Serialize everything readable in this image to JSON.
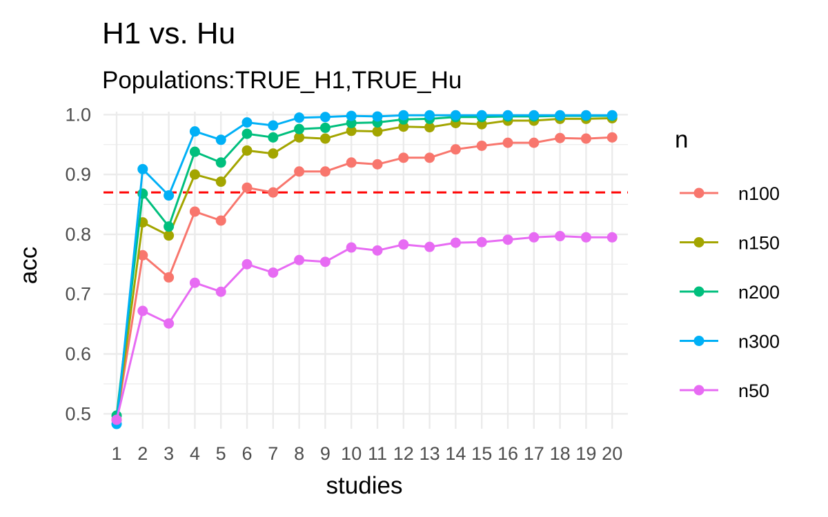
{
  "chart_data": {
    "type": "line",
    "title": "H1 vs. Hu",
    "subtitle": "Populations:TRUE_H1,TRUE_Hu",
    "xlabel": "studies",
    "ylabel": "acc",
    "x": [
      1,
      2,
      3,
      4,
      5,
      6,
      7,
      8,
      9,
      10,
      11,
      12,
      13,
      14,
      15,
      16,
      17,
      18,
      19,
      20
    ],
    "ylim": [
      0.475,
      1.005
    ],
    "yticks": [
      0.5,
      0.6,
      0.7,
      0.8,
      0.9,
      1.0
    ],
    "ytick_labels": [
      "0.5",
      "0.6",
      "0.7",
      "0.8",
      "0.9",
      "1.0"
    ],
    "grid": true,
    "reference_line": {
      "y": 0.87,
      "color": "#ff0000",
      "style": "dashed"
    },
    "legend": {
      "title": "n",
      "placement": "right"
    },
    "series": [
      {
        "name": "n100",
        "color": "#F8766D",
        "values": [
          0.49,
          0.765,
          0.728,
          0.838,
          0.823,
          0.878,
          0.87,
          0.905,
          0.905,
          0.92,
          0.917,
          0.928,
          0.928,
          0.942,
          0.948,
          0.953,
          0.953,
          0.961,
          0.96,
          0.962
        ]
      },
      {
        "name": "n150",
        "color": "#A3A500",
        "values": [
          0.49,
          0.82,
          0.798,
          0.9,
          0.888,
          0.94,
          0.935,
          0.962,
          0.96,
          0.973,
          0.972,
          0.98,
          0.979,
          0.986,
          0.984,
          0.99,
          0.99,
          0.993,
          0.993,
          0.994
        ]
      },
      {
        "name": "n200",
        "color": "#00BF7D",
        "values": [
          0.497,
          0.868,
          0.813,
          0.938,
          0.92,
          0.968,
          0.962,
          0.976,
          0.978,
          0.986,
          0.987,
          0.992,
          0.993,
          0.996,
          0.996,
          0.997,
          0.997,
          0.998,
          0.998,
          0.998
        ]
      },
      {
        "name": "n300",
        "color": "#00B0F6",
        "values": [
          0.483,
          0.909,
          0.865,
          0.972,
          0.958,
          0.987,
          0.982,
          0.995,
          0.996,
          0.998,
          0.997,
          0.999,
          0.999,
          0.999,
          0.999,
          0.999,
          0.999,
          0.999,
          0.999,
          0.999
        ]
      },
      {
        "name": "n50",
        "color": "#E76BF3",
        "values": [
          0.49,
          0.672,
          0.651,
          0.719,
          0.704,
          0.75,
          0.736,
          0.757,
          0.754,
          0.778,
          0.773,
          0.783,
          0.779,
          0.786,
          0.787,
          0.791,
          0.795,
          0.797,
          0.795,
          0.795
        ]
      }
    ]
  }
}
